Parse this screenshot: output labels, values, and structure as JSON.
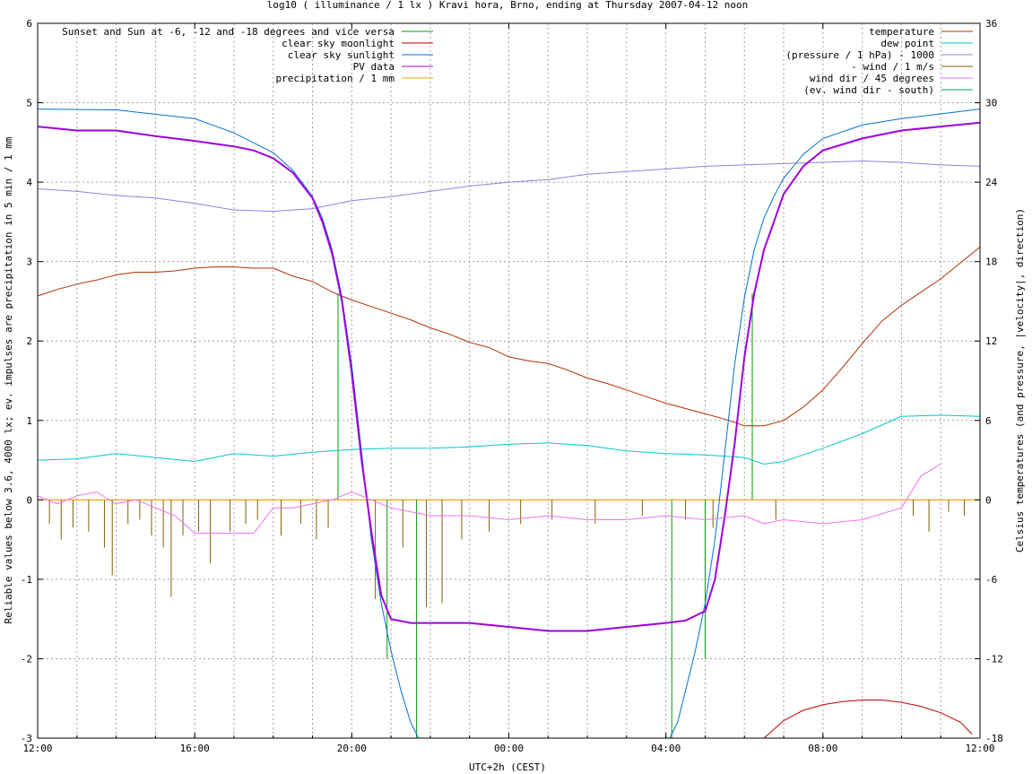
{
  "chart_data": {
    "type": "line",
    "title": "log10 ( illuminance / 1 lx ) Kravi hora, Brno, ending at Thursday 2007-04-12 noon",
    "xlabel": "UTC+2h (CEST)",
    "ylabel": "Reliable values below 3.6, 4000 lx; ev. impulses are precipitation in 5 min / 1 mm",
    "y2label": "Celsius temperatures (and pressure, |velocity|, direction)",
    "xlim": [
      12,
      36
    ],
    "ylim": [
      -3,
      6
    ],
    "y2lim": [
      -18,
      36
    ],
    "x_ticks": [
      {
        "value": 12,
        "label": "12:00"
      },
      {
        "value": 16,
        "label": "16:00"
      },
      {
        "value": 20,
        "label": "20:00"
      },
      {
        "value": 24,
        "label": "00:00"
      },
      {
        "value": 28,
        "label": "04:00"
      },
      {
        "value": 32,
        "label": "08:00"
      },
      {
        "value": 36,
        "label": "12:00"
      }
    ],
    "y_ticks": [
      "-3",
      "-2",
      "-1",
      "0",
      "1",
      "2",
      "3",
      "4",
      "5",
      "6"
    ],
    "y2_ticks": [
      "-18",
      "-12",
      "-6",
      "0",
      "6",
      "12",
      "18",
      "24",
      "30",
      "36"
    ],
    "grid": true,
    "legend_left": [
      {
        "name": "Sunset and Sun at -6, -12 and -18 degrees and vice versa",
        "color": "#00a000"
      },
      {
        "name": "clear sky moonlight",
        "color": "#c00000"
      },
      {
        "name": "clear sky sunlight",
        "color": "#0070d0"
      },
      {
        "name": "PV data",
        "color": "#a000e0"
      },
      {
        "name": "precipitation / 1 mm",
        "color": "#ffa000"
      }
    ],
    "legend_right": [
      {
        "name": "temperature",
        "color": "#b03000"
      },
      {
        "name": "dew point",
        "color": "#00c8c8"
      },
      {
        "name": "(pressure / 1 hPa) - 1000",
        "color": "#9080e0"
      },
      {
        "name": "- wind / 1 m/s",
        "color": "#806000"
      },
      {
        "name": "wind dir / 45 degrees",
        "color": "#f070f0"
      },
      {
        "name": "(ev. wind dir - south)",
        "color": "#00a080"
      }
    ],
    "sun_event_lines": [
      {
        "x": 19.65,
        "y_top": 2.6
      },
      {
        "x": 20.2,
        "y_top": 0.0
      },
      {
        "x": 20.9,
        "y_top": -2.0
      },
      {
        "x": 21.65,
        "y_top": -3.0
      },
      {
        "x": 28.15,
        "y_top": -3.0
      },
      {
        "x": 29.0,
        "y_top": -2.0
      },
      {
        "x": 29.65,
        "y_top": 0.0
      },
      {
        "x": 30.2,
        "y_top": 2.6
      }
    ],
    "series": [
      {
        "name": "temperature",
        "axis": "y2",
        "color": "#b03000",
        "x": [
          12,
          12.5,
          13,
          13.5,
          14,
          14.5,
          15,
          15.5,
          16,
          16.5,
          17,
          17.5,
          18,
          18.5,
          19,
          19.5,
          20,
          20.5,
          21,
          21.5,
          22,
          22.5,
          23,
          23.5,
          24,
          24.5,
          25,
          25.5,
          26,
          26.5,
          27,
          27.5,
          28,
          28.5,
          29,
          29.5,
          30,
          30.5,
          31,
          31.5,
          32,
          32.5,
          33,
          33.5,
          34,
          34.5,
          35,
          35.5,
          36
        ],
        "y": [
          15.4,
          15.9,
          16.3,
          16.6,
          17.0,
          17.2,
          17.2,
          17.3,
          17.5,
          17.6,
          17.6,
          17.5,
          17.5,
          16.9,
          16.5,
          15.7,
          15.1,
          14.6,
          14.1,
          13.6,
          13.0,
          12.5,
          11.9,
          11.5,
          10.8,
          10.5,
          10.3,
          9.8,
          9.2,
          8.8,
          8.3,
          7.8,
          7.3,
          6.9,
          6.5,
          6.1,
          5.6,
          5.6,
          6.0,
          7.0,
          8.3,
          10.0,
          11.8,
          13.5,
          14.7,
          15.7,
          16.7,
          17.9,
          19.1
        ]
      },
      {
        "name": "dew point",
        "axis": "y2",
        "color": "#00c8c8",
        "x": [
          12,
          13,
          14,
          15,
          16,
          17,
          18,
          19,
          20,
          21,
          22,
          23,
          24,
          25,
          26,
          27,
          28,
          29,
          30,
          30.5,
          31,
          32,
          33,
          34,
          35,
          36
        ],
        "y": [
          3.0,
          3.1,
          3.5,
          3.2,
          2.9,
          3.5,
          3.3,
          3.6,
          3.8,
          3.9,
          3.9,
          4.0,
          4.2,
          4.3,
          4.1,
          3.7,
          3.5,
          3.4,
          3.2,
          2.7,
          2.9,
          3.9,
          5.0,
          6.3,
          6.4,
          6.3
        ]
      },
      {
        "name": "(pressure / 1 hPa) - 1000",
        "axis": "y2",
        "color": "#9080e0",
        "x": [
          12,
          13,
          14,
          15,
          16,
          17,
          18,
          19,
          20,
          21,
          22,
          23,
          24,
          25,
          26,
          27,
          28,
          29,
          30,
          31,
          32,
          33,
          34,
          35,
          36
        ],
        "y": [
          23.5,
          23.3,
          23.0,
          22.8,
          22.4,
          21.9,
          21.8,
          22.0,
          22.6,
          22.9,
          23.3,
          23.7,
          24.0,
          24.2,
          24.6,
          24.8,
          25.0,
          25.2,
          25.3,
          25.4,
          25.5,
          25.6,
          25.5,
          25.3,
          25.2
        ]
      },
      {
        "name": "clear sky sunlight",
        "axis": "y",
        "color": "#0070d0",
        "x": [
          12,
          14,
          16,
          17,
          18,
          18.5,
          19,
          19.25,
          19.5,
          19.75,
          20,
          20.25,
          20.5,
          20.75,
          21,
          21.25,
          21.5,
          21.7,
          28.1,
          28.3,
          28.5,
          28.75,
          29,
          29.25,
          29.5,
          29.75,
          30,
          30.25,
          30.5,
          30.75,
          31,
          31.5,
          32,
          33,
          34,
          36
        ],
        "y": [
          4.92,
          4.91,
          4.8,
          4.62,
          4.37,
          4.15,
          3.82,
          3.55,
          3.15,
          2.55,
          1.7,
          0.6,
          -0.5,
          -1.3,
          -1.9,
          -2.4,
          -2.8,
          -3.0,
          -3.0,
          -2.8,
          -2.4,
          -1.9,
          -1.3,
          -0.5,
          0.6,
          1.7,
          2.55,
          3.15,
          3.55,
          3.82,
          4.05,
          4.35,
          4.55,
          4.72,
          4.8,
          4.92
        ]
      },
      {
        "name": "PV data",
        "axis": "y",
        "color": "#a000e0",
        "x": [
          12,
          13,
          14,
          15,
          16,
          17,
          17.5,
          18,
          18.5,
          19,
          19.25,
          19.5,
          19.75,
          20,
          20.25,
          20.5,
          20.75,
          21,
          21.5,
          22,
          23,
          24,
          25,
          26,
          27,
          28,
          28.5,
          29,
          29.25,
          29.5,
          29.75,
          30,
          30.25,
          30.5,
          30.75,
          31,
          31.5,
          32,
          33,
          34,
          35,
          36
        ],
        "y": [
          4.7,
          4.65,
          4.65,
          4.58,
          4.52,
          4.45,
          4.4,
          4.3,
          4.12,
          3.8,
          3.5,
          3.1,
          2.5,
          1.6,
          0.5,
          -0.4,
          -1.2,
          -1.5,
          -1.55,
          -1.55,
          -1.55,
          -1.6,
          -1.65,
          -1.65,
          -1.6,
          -1.55,
          -1.52,
          -1.4,
          -1.0,
          -0.2,
          0.7,
          1.8,
          2.6,
          3.15,
          3.5,
          3.85,
          4.2,
          4.4,
          4.55,
          4.65,
          4.7,
          4.75
        ]
      },
      {
        "name": "clear sky moonlight",
        "axis": "y",
        "color": "#c00000",
        "x": [
          30.5,
          31,
          31.5,
          32,
          32.5,
          33,
          33.5,
          34,
          34.5,
          35,
          35.5,
          35.8
        ],
        "y": [
          -3.0,
          -2.78,
          -2.65,
          -2.58,
          -2.54,
          -2.52,
          -2.52,
          -2.55,
          -2.6,
          -2.68,
          -2.8,
          -2.95
        ]
      },
      {
        "name": "wind dir / 45 degrees",
        "axis": "y",
        "color": "#f070f0",
        "x": [
          12,
          12.5,
          13,
          13.5,
          14,
          14.5,
          15,
          15.5,
          16,
          16.5,
          17,
          17.5,
          18,
          18.5,
          19,
          19.5,
          20,
          20.5,
          21,
          21.5,
          22,
          23,
          24,
          25,
          26,
          27,
          28,
          29,
          30,
          30.5,
          31,
          32,
          33,
          34,
          34.5,
          35
        ],
        "y": [
          0.05,
          -0.05,
          0.05,
          0.1,
          -0.05,
          0.0,
          -0.1,
          -0.2,
          -0.42,
          -0.42,
          -0.42,
          -0.42,
          -0.1,
          -0.1,
          -0.05,
          0.0,
          0.1,
          0.0,
          -0.1,
          -0.15,
          -0.2,
          -0.2,
          -0.25,
          -0.2,
          -0.25,
          -0.25,
          -0.2,
          -0.25,
          -0.2,
          -0.3,
          -0.25,
          -0.3,
          -0.25,
          -0.1,
          0.3,
          0.45
        ]
      }
    ],
    "wind_impulses": {
      "axis": "y",
      "color": "#806000",
      "x": [
        12.3,
        12.6,
        12.9,
        13.3,
        13.7,
        13.9,
        14.3,
        14.6,
        14.9,
        15.2,
        15.4,
        15.7,
        16.1,
        16.4,
        16.9,
        17.3,
        17.6,
        18.2,
        18.7,
        19.1,
        19.4,
        20.6,
        21.3,
        21.9,
        22.3,
        22.8,
        23.5,
        24.3,
        25.1,
        26.2,
        27.4,
        28.5,
        29.2,
        30.8,
        34.3,
        34.7,
        35.2,
        35.6
      ],
      "y": [
        -0.3,
        -0.5,
        -0.35,
        -0.4,
        -0.6,
        -0.95,
        -0.3,
        -0.25,
        -0.45,
        -0.6,
        -1.22,
        -0.45,
        -0.4,
        -0.8,
        -0.4,
        -0.3,
        -0.25,
        -0.45,
        -0.3,
        -0.5,
        -0.35,
        -1.25,
        -0.6,
        -1.35,
        -1.3,
        -0.5,
        -0.4,
        -0.3,
        -0.25,
        -0.3,
        -0.2,
        -0.25,
        -0.35,
        -0.25,
        -0.2,
        -0.4,
        -0.15,
        -0.2
      ]
    }
  }
}
